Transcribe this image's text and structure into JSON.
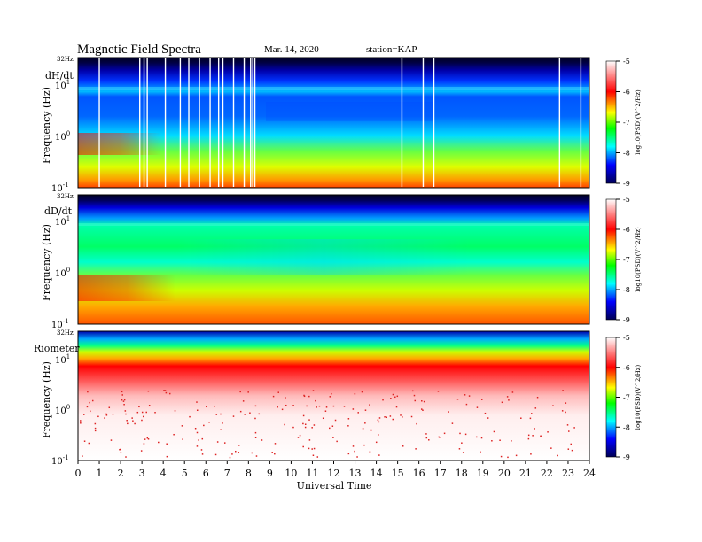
{
  "header": {
    "title": "Magnetic  Field  Spectra",
    "date": "Mar. 14, 2020",
    "station": "station=KAP"
  },
  "xaxis": {
    "label": "Universal  Time",
    "ticks": [
      "0",
      "1",
      "2",
      "3",
      "4",
      "5",
      "6",
      "7",
      "8",
      "9",
      "10",
      "11",
      "12",
      "13",
      "14",
      "15",
      "16",
      "17",
      "18",
      "19",
      "20",
      "21",
      "22",
      "23",
      "24"
    ],
    "range": [
      0,
      24
    ]
  },
  "panels": [
    {
      "label": "dH/dt",
      "ylabel": "Frequency  (Hz)"
    },
    {
      "label": "dD/dt",
      "ylabel": "Frequency  (Hz)"
    },
    {
      "label": "Riometer",
      "ylabel": "Frequency  (Hz)"
    }
  ],
  "yaxis": {
    "top_label": "32Hz",
    "ticks": [
      {
        "base": "10",
        "exp": "1",
        "value": 10
      },
      {
        "base": "10",
        "exp": "0",
        "value": 1
      },
      {
        "base": "10",
        "exp": "-1",
        "value": 0.1
      }
    ],
    "range_hz": [
      0.1,
      32
    ],
    "scale": "log"
  },
  "colorbar": {
    "ticks": [
      "-5",
      "-6",
      "-7",
      "-8",
      "-9"
    ],
    "range": [
      -9,
      -5
    ],
    "label": "log10(PSD)(V^2/Hz)",
    "colors": [
      "#000066",
      "#0000ff",
      "#00aaff",
      "#00ffaa",
      "#00ff00",
      "#ffff00",
      "#ff8800",
      "#ff0000",
      "#ffffff"
    ]
  },
  "chart_data": [
    {
      "type": "heatmap",
      "panel": "dH/dt",
      "x_range_ut_hours": [
        0,
        24
      ],
      "y_range_hz": [
        0.1,
        32
      ],
      "z_range_log10_psd": [
        -9,
        -5
      ],
      "data_gap_lines_ut": [
        1.0,
        2.9,
        3.1,
        3.25,
        4.1,
        4.8,
        5.2,
        5.7,
        6.2,
        6.6,
        6.8,
        7.3,
        7.8,
        8.1,
        8.2,
        8.3,
        15.2,
        16.2,
        16.7,
        22.6,
        23.6
      ]
    },
    {
      "type": "heatmap",
      "panel": "dD/dt",
      "x_range_ut_hours": [
        0,
        24
      ],
      "y_range_hz": [
        0.1,
        32
      ],
      "z_range_log10_psd": [
        -9,
        -5
      ]
    },
    {
      "type": "heatmap",
      "panel": "Riometer",
      "x_range_ut_hours": [
        0,
        24
      ],
      "y_range_hz": [
        0.1,
        32
      ],
      "z_range_log10_psd": [
        -9,
        -5
      ]
    }
  ]
}
